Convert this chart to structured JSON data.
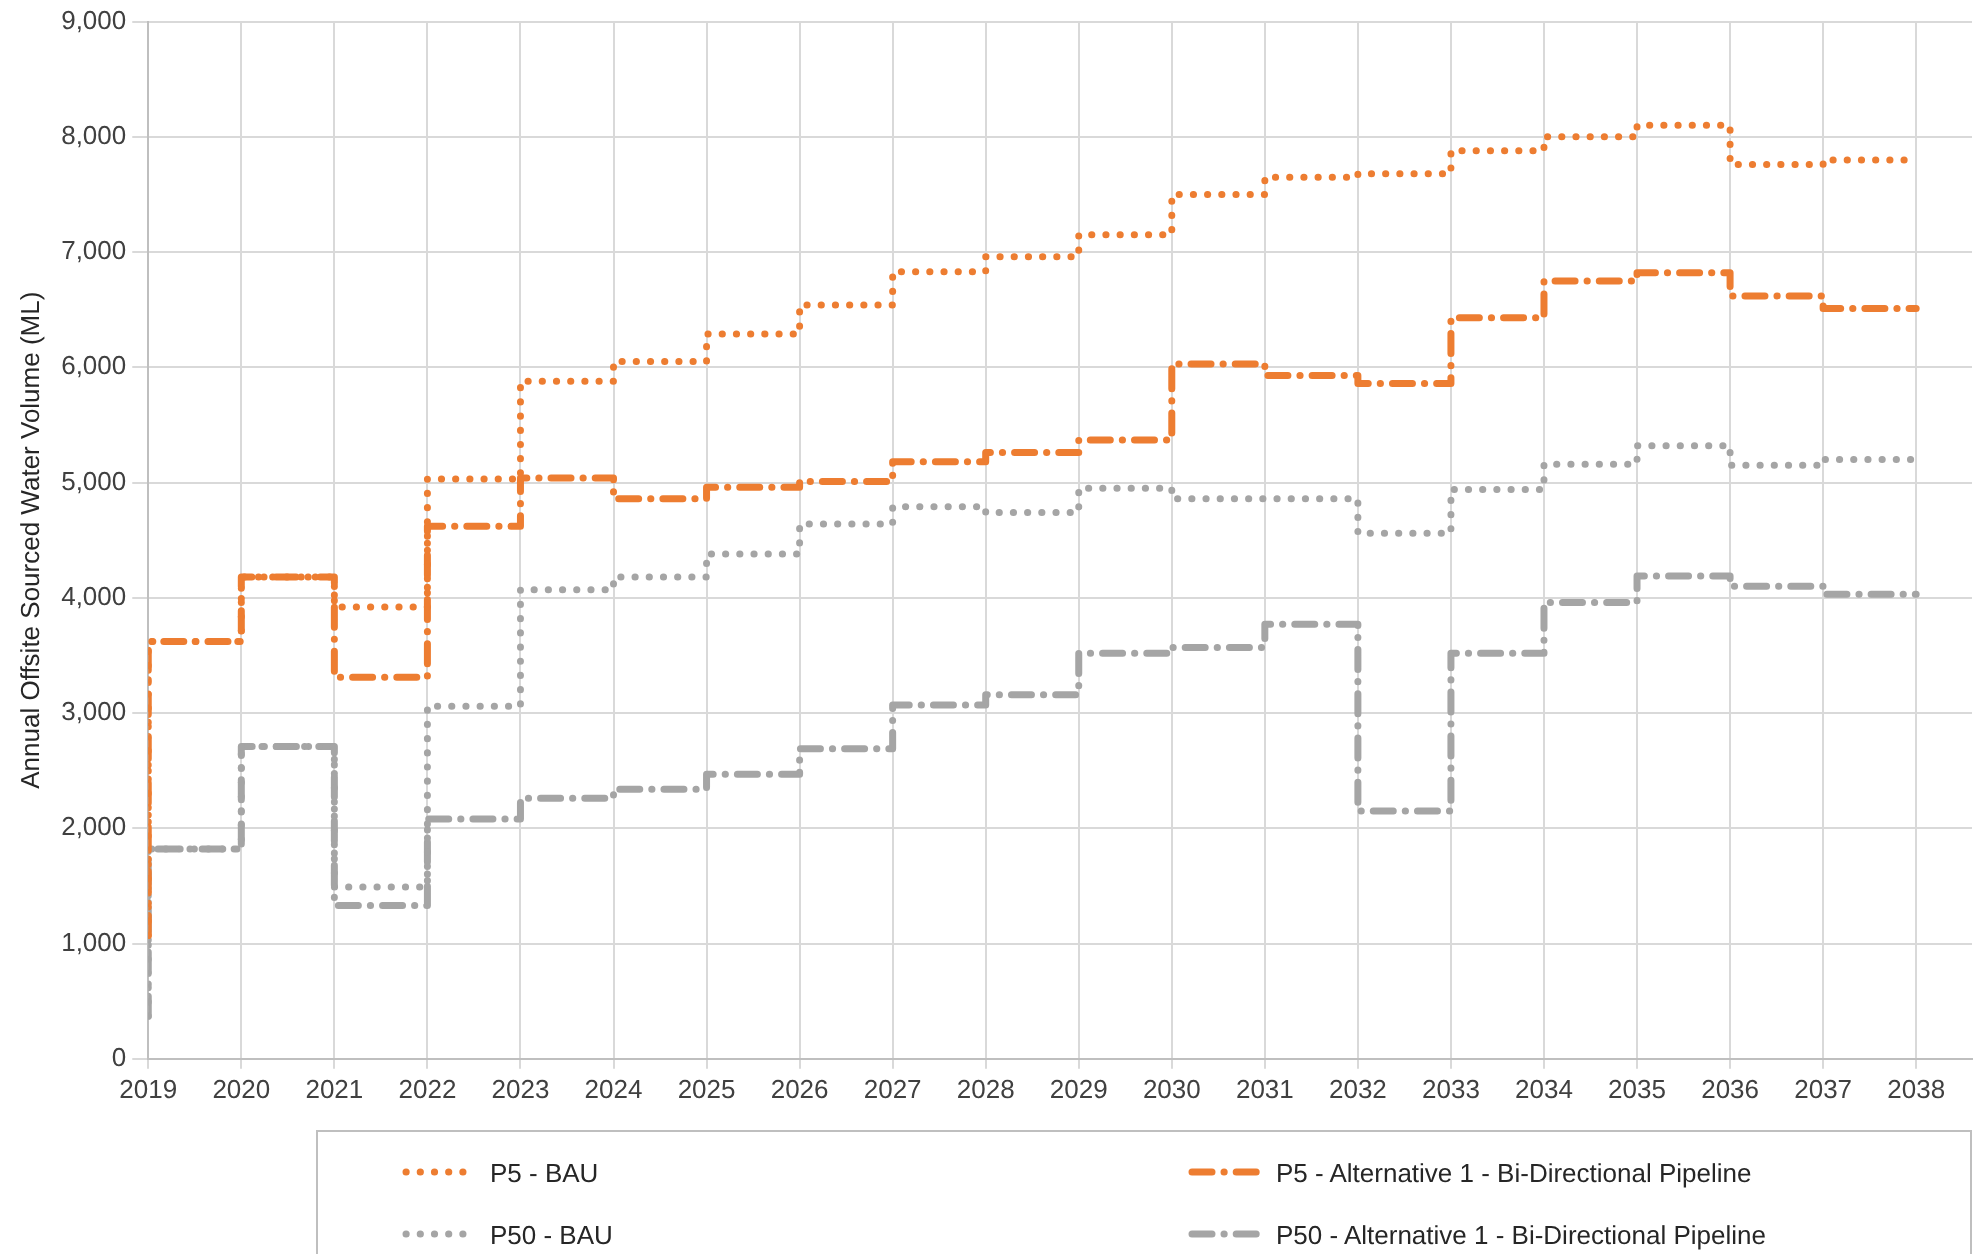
{
  "chart_data": {
    "type": "step",
    "ylabel": "Annual Offsite Sourced Water Volume (ML)",
    "x": [
      2019,
      2020,
      2021,
      2022,
      2023,
      2024,
      2025,
      2026,
      2027,
      2028,
      2029,
      2030,
      2031,
      2032,
      2033,
      2034,
      2035,
      2036,
      2037,
      2038
    ],
    "xlim": [
      2019,
      2038.6
    ],
    "xticks": [
      2019,
      2020,
      2021,
      2022,
      2023,
      2024,
      2025,
      2026,
      2027,
      2028,
      2029,
      2030,
      2031,
      2032,
      2033,
      2034,
      2035,
      2036,
      2037,
      2038
    ],
    "ylim": [
      0,
      9000
    ],
    "yticks": [
      0,
      {
        "value": 1000,
        "label": "1,000"
      },
      {
        "value": 2000,
        "label": "2,000"
      },
      {
        "value": 3000,
        "label": "3,000"
      },
      {
        "value": 4000,
        "label": "4,000"
      },
      {
        "value": 5000,
        "label": "5,000"
      },
      {
        "value": 6000,
        "label": "6,000"
      },
      {
        "value": 7000,
        "label": "7,000"
      },
      {
        "value": 8000,
        "label": "8,000"
      },
      {
        "value": 9000,
        "label": "9,000"
      }
    ],
    "grid": true,
    "legend": "bottom",
    "marker": "none",
    "series": [
      {
        "name": "P5 - BAU",
        "color": "#ed7d31",
        "line_style": "dotted",
        "values": [
          1070,
          3620,
          4180,
          3920,
          5030,
          5880,
          6050,
          6290,
          6540,
          6830,
          6960,
          7150,
          7500,
          7650,
          7680,
          7880,
          8000,
          8100,
          7760,
          7800
        ]
      },
      {
        "name": "P5 - Alternative 1 - Bi-Directional Pipeline",
        "color": "#ed7d31",
        "line_style": "dashed",
        "values": [
          1070,
          3620,
          4180,
          3310,
          4620,
          5040,
          4860,
          4960,
          5010,
          5180,
          5260,
          5370,
          6030,
          5930,
          5860,
          6430,
          6750,
          6820,
          6620,
          6510
        ]
      },
      {
        "name": "P50 - BAU",
        "color": "#a5a5a5",
        "line_style": "dotted",
        "values": [
          370,
          1820,
          2710,
          1490,
          3060,
          4070,
          4180,
          4380,
          4640,
          4790,
          4740,
          4950,
          4860,
          4860,
          4560,
          4940,
          5160,
          5320,
          5150,
          5200
        ]
      },
      {
        "name": "P50 - Alternative 1 - Bi-Directional Pipeline",
        "color": "#a5a5a5",
        "line_style": "dashed",
        "values": [
          370,
          1820,
          2710,
          1330,
          2080,
          2260,
          2340,
          2470,
          2690,
          3070,
          3160,
          3520,
          3570,
          3770,
          2150,
          3520,
          3960,
          4190,
          4100,
          4030
        ]
      }
    ]
  }
}
